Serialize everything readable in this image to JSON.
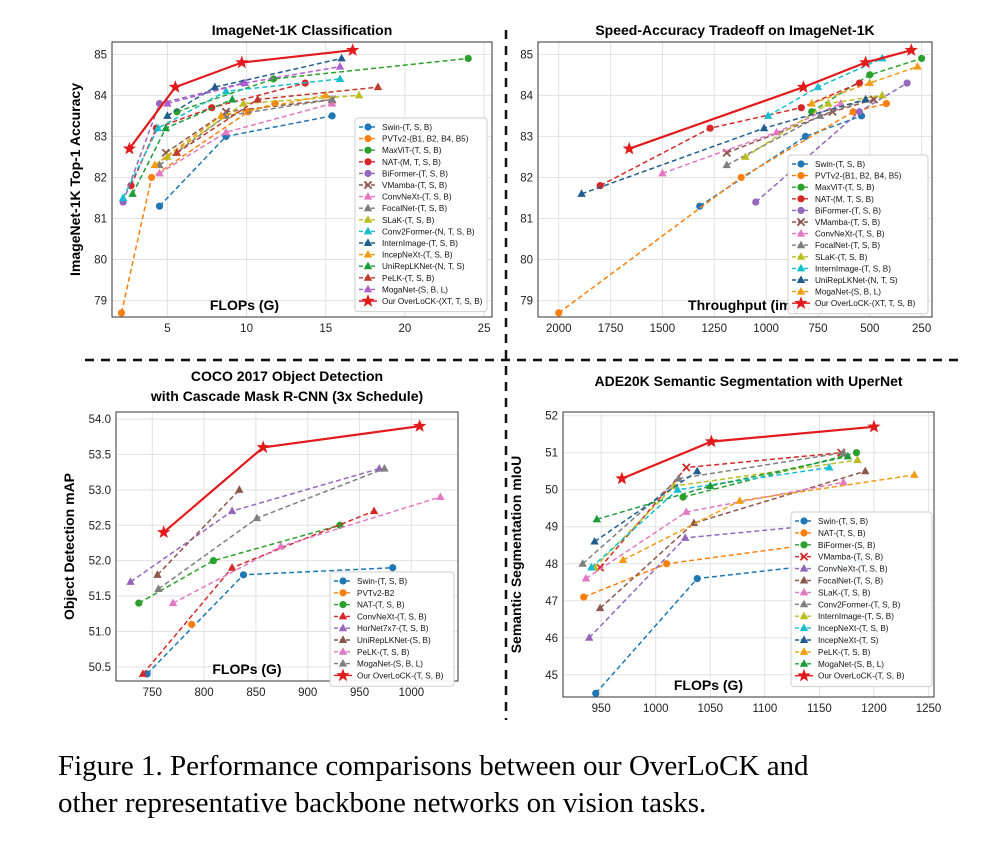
{
  "caption": {
    "line1": "Figure 1.  Performance comparisons between our OverLoCK and",
    "line2": "other representative backbone networks on vision tasks."
  },
  "colors": {
    "blue": "#1f77b4",
    "orange": "#ff7f0e",
    "green": "#2ca02c",
    "red": "#d62728",
    "purple": "#9467bd",
    "brown": "#8c564b",
    "pink": "#e377c2",
    "gray": "#7f7f7f",
    "olive": "#bcbd22",
    "cyan": "#17becf",
    "navy": "#1f5d8f",
    "darkorange": "#f39c12",
    "darkgreen": "#1a9c3a",
    "crimson": "#c0392b",
    "violet": "#b05fcf",
    "star": "#e31a1c"
  },
  "chart_data": [
    {
      "type": "line",
      "title": "ImageNet-1K Classification",
      "xlabel": "FLOPs (G)",
      "ylabel": "ImageNet-1K Top-1 Accuracy",
      "xlim": [
        1.5,
        25.5
      ],
      "ylim": [
        78.6,
        85.3
      ],
      "xticks": [
        5,
        10,
        15,
        20,
        25
      ],
      "yticks": [
        79,
        80,
        81,
        82,
        83,
        84,
        85
      ],
      "grid": true,
      "legend_position": "lower-right",
      "series": [
        {
          "name": "Swin-(T, S, B)",
          "color": "blue",
          "marker": "o",
          "x": [
            4.5,
            8.7,
            15.4
          ],
          "y": [
            81.3,
            83.0,
            83.5
          ]
        },
        {
          "name": "PVTv2-(B1, B2, B4, B5)",
          "color": "orange",
          "marker": "o",
          "x": [
            2.1,
            4.0,
            10.1,
            11.8
          ],
          "y": [
            78.7,
            82.0,
            83.6,
            83.8
          ]
        },
        {
          "name": "MaxViT-(T, S, B)",
          "color": "green",
          "marker": "o",
          "x": [
            5.6,
            11.7,
            24.0
          ],
          "y": [
            83.6,
            84.4,
            84.9
          ]
        },
        {
          "name": "NAT-(M, T, S, B)",
          "color": "red",
          "marker": "o",
          "x": [
            2.7,
            4.3,
            7.8,
            13.7
          ],
          "y": [
            81.8,
            83.2,
            83.7,
            84.3
          ]
        },
        {
          "name": "BiFormer-(T, S, B)",
          "color": "purple",
          "marker": "o",
          "x": [
            2.2,
            4.5,
            9.8
          ],
          "y": [
            81.4,
            83.8,
            84.3
          ]
        },
        {
          "name": "VMamba-(T, S, B)",
          "color": "brown",
          "marker": "x",
          "x": [
            4.9,
            8.7,
            15.4
          ],
          "y": [
            82.6,
            83.6,
            83.9
          ]
        },
        {
          "name": "ConvNeXt-(T, S, B)",
          "color": "pink",
          "marker": "^",
          "x": [
            4.5,
            8.7,
            15.4
          ],
          "y": [
            82.1,
            83.1,
            83.8
          ]
        },
        {
          "name": "FocalNet-(T, S, B)",
          "color": "gray",
          "marker": "^",
          "x": [
            4.5,
            8.7,
            15.4
          ],
          "y": [
            82.3,
            83.5,
            83.9
          ]
        },
        {
          "name": "SLaK-(T, S, B)",
          "color": "olive",
          "marker": "^",
          "x": [
            5.0,
            9.8,
            17.1
          ],
          "y": [
            82.5,
            83.8,
            84.0
          ]
        },
        {
          "name": "Conv2Former-(N, T, S, B)",
          "color": "cyan",
          "marker": "^",
          "x": [
            2.2,
            4.4,
            8.7,
            15.9
          ],
          "y": [
            81.5,
            83.2,
            84.1,
            84.4
          ]
        },
        {
          "name": "InternImage-(T, S, B)",
          "color": "navy",
          "marker": "^",
          "x": [
            5.0,
            8.0,
            16.0
          ],
          "y": [
            83.5,
            84.2,
            84.9
          ]
        },
        {
          "name": "IncepNeXt-(T, S, B)",
          "color": "darkorange",
          "marker": "^",
          "x": [
            4.2,
            8.4,
            15.0
          ],
          "y": [
            82.3,
            83.5,
            84.0
          ]
        },
        {
          "name": "UniRepLKNet-(N, T, S)",
          "color": "darkgreen",
          "marker": "^",
          "x": [
            2.8,
            4.9,
            9.1
          ],
          "y": [
            81.6,
            83.2,
            83.9
          ]
        },
        {
          "name": "PeLK-(T, S, B)",
          "color": "crimson",
          "marker": "^",
          "x": [
            5.6,
            10.7,
            18.3
          ],
          "y": [
            82.6,
            83.9,
            84.2
          ]
        },
        {
          "name": "MogaNet-(S, B, L)",
          "color": "violet",
          "marker": "^",
          "x": [
            5.0,
            9.9,
            15.9
          ],
          "y": [
            83.8,
            84.3,
            84.7
          ]
        },
        {
          "name": "Our OverLoCK-(XT, T, S, B)",
          "color": "star",
          "marker": "*",
          "x": [
            2.6,
            5.5,
            9.7,
            16.7
          ],
          "y": [
            82.7,
            84.2,
            84.8,
            85.1
          ]
        }
      ]
    },
    {
      "type": "line",
      "title": "Speed-Accuracy Tradeoff on ImageNet-1K",
      "xlabel": "Throughput (imgs/s)",
      "xlim": [
        2100,
        200
      ],
      "ylim": [
        78.6,
        85.3
      ],
      "xticks": [
        2000,
        1750,
        1500,
        1250,
        1000,
        750,
        500,
        250
      ],
      "yticks": [
        79,
        80,
        81,
        82,
        83,
        84,
        85
      ],
      "grid": true,
      "legend_position": "lower-right",
      "series": [
        {
          "name": "Swin-(T, S, B)",
          "color": "blue",
          "marker": "o",
          "x": [
            1320,
            810,
            540
          ],
          "y": [
            81.3,
            83.0,
            83.5
          ]
        },
        {
          "name": "PVTv2-(B1, B2, B4, B5)",
          "color": "orange",
          "marker": "o",
          "x": [
            2000,
            1120,
            580,
            420
          ],
          "y": [
            78.7,
            82.0,
            83.6,
            83.8
          ]
        },
        {
          "name": "MaxViT-(T, S, B)",
          "color": "green",
          "marker": "o",
          "x": [
            780,
            500,
            250
          ],
          "y": [
            83.6,
            84.5,
            84.9
          ]
        },
        {
          "name": "NAT-(M, T, S, B)",
          "color": "red",
          "marker": "o",
          "x": [
            1800,
            1270,
            830,
            550
          ],
          "y": [
            81.8,
            83.2,
            83.7,
            84.3
          ]
        },
        {
          "name": "BiFormer-(T, S, B)",
          "color": "purple",
          "marker": "o",
          "x": [
            1050,
            550,
            320
          ],
          "y": [
            81.4,
            83.6,
            84.3
          ]
        },
        {
          "name": "VMamba-(T, S, B)",
          "color": "brown",
          "marker": "x",
          "x": [
            1190,
            680,
            480
          ],
          "y": [
            82.6,
            83.6,
            83.9
          ]
        },
        {
          "name": "ConvNeXt-(T, S, B)",
          "color": "pink",
          "marker": "^",
          "x": [
            1500,
            950,
            640
          ],
          "y": [
            82.1,
            83.1,
            83.8
          ]
        },
        {
          "name": "FocalNet-(T, S, B)",
          "color": "gray",
          "marker": "^",
          "x": [
            1190,
            740,
            520
          ],
          "y": [
            82.3,
            83.5,
            83.9
          ]
        },
        {
          "name": "SLaK-(T, S, B)",
          "color": "olive",
          "marker": "^",
          "x": [
            1100,
            700,
            440
          ],
          "y": [
            82.5,
            83.8,
            84.0
          ]
        },
        {
          "name": "InternImage-(T, S, B)",
          "color": "cyan",
          "marker": "^",
          "x": [
            990,
            750,
            440
          ],
          "y": [
            83.5,
            84.2,
            84.9
          ]
        },
        {
          "name": "UniRepLKNet-(N, T, S)",
          "color": "navy",
          "marker": "^",
          "x": [
            1890,
            1010,
            520
          ],
          "y": [
            81.6,
            83.2,
            83.9
          ]
        },
        {
          "name": "MogaNet-(S, B, L)",
          "color": "darkorange",
          "marker": "^",
          "x": [
            780,
            500,
            270
          ],
          "y": [
            83.8,
            84.3,
            84.7
          ]
        },
        {
          "name": "Our OverLoCK-(XT, T, S, B)",
          "color": "star",
          "marker": "*",
          "x": [
            1660,
            820,
            520,
            300
          ],
          "y": [
            82.7,
            84.2,
            84.8,
            85.1
          ]
        }
      ]
    },
    {
      "type": "line",
      "title": "COCO 2017 Object Detection",
      "subtitle": "with Cascade Mask R-CNN (3x Schedule)",
      "xlabel": "FLOPs (G)",
      "ylabel": "Object Detection mAP",
      "xlim": [
        715,
        1045
      ],
      "ylim": [
        50.3,
        54.1
      ],
      "xticks": [
        750,
        800,
        850,
        900,
        950,
        1000
      ],
      "yticks": [
        50.5,
        51.0,
        51.5,
        52.0,
        52.5,
        53.0,
        53.5,
        54.0
      ],
      "grid": true,
      "legend_position": "lower-right",
      "series": [
        {
          "name": "Swin-(T, S, B)",
          "color": "blue",
          "marker": "o",
          "x": [
            745,
            838,
            982
          ],
          "y": [
            50.4,
            51.8,
            51.9
          ]
        },
        {
          "name": "PVTv2-B2",
          "color": "orange",
          "marker": "o",
          "x": [
            788
          ],
          "y": [
            51.1
          ]
        },
        {
          "name": "NAT-(T, S, B)",
          "color": "green",
          "marker": "o",
          "x": [
            737,
            809,
            931
          ],
          "y": [
            51.4,
            52.0,
            52.5
          ]
        },
        {
          "name": "ConvNeXt-(T, S, B)",
          "color": "red",
          "marker": "^",
          "x": [
            741,
            827,
            964
          ],
          "y": [
            50.4,
            51.9,
            52.7
          ]
        },
        {
          "name": "HorNet7x7-(T, S, B)",
          "color": "purple",
          "marker": "^",
          "x": [
            729,
            827,
            969
          ],
          "y": [
            51.7,
            52.7,
            53.3
          ]
        },
        {
          "name": "UniRepLKNet-(S, B)",
          "color": "brown",
          "marker": "^",
          "x": [
            755,
            834
          ],
          "y": [
            51.8,
            53.0
          ]
        },
        {
          "name": "PeLK-(T, S, B)",
          "color": "pink",
          "marker": "^",
          "x": [
            770,
            874,
            1028
          ],
          "y": [
            51.4,
            52.2,
            52.9
          ]
        },
        {
          "name": "MogaNet-(S, B, L)",
          "color": "gray",
          "marker": "^",
          "x": [
            756,
            851,
            974
          ],
          "y": [
            51.6,
            52.6,
            53.3
          ]
        },
        {
          "name": "Our OverLoCK-(T, S, B)",
          "color": "star",
          "marker": "*",
          "x": [
            761,
            857,
            1008
          ],
          "y": [
            52.4,
            53.6,
            53.9
          ]
        }
      ]
    },
    {
      "type": "line",
      "title": "ADE20K Semantic Segmentation with UperNet",
      "xlabel": "FLOPs (G)",
      "ylabel": "Semantic Segmentation mIoU",
      "xlim": [
        915,
        1255
      ],
      "ylim": [
        44.4,
        52.1
      ],
      "xticks": [
        950,
        1000,
        1050,
        1100,
        1150,
        1200,
        1250
      ],
      "yticks": [
        45,
        46,
        47,
        48,
        49,
        50,
        51,
        52
      ],
      "grid": true,
      "legend_position": "lower-right",
      "series": [
        {
          "name": "Swin-(T, S, B)",
          "color": "blue",
          "marker": "o",
          "x": [
            945,
            1038,
            1188
          ],
          "y": [
            44.5,
            47.6,
            48.1
          ]
        },
        {
          "name": "NAT-(T, S, B)",
          "color": "orange",
          "marker": "o",
          "x": [
            934,
            1010,
            1137
          ],
          "y": [
            47.1,
            48.0,
            48.5
          ]
        },
        {
          "name": "BiFormer-(S, B)",
          "color": "green",
          "marker": "o",
          "x": [
            1025,
            1184
          ],
          "y": [
            49.8,
            51.0
          ]
        },
        {
          "name": "VMamba-(T, S, B)",
          "color": "red",
          "marker": "x",
          "x": [
            949,
            1028,
            1170
          ],
          "y": [
            47.9,
            50.6,
            51.0
          ]
        },
        {
          "name": "ConvNeXt-(T, S, B)",
          "color": "purple",
          "marker": "^",
          "x": [
            939,
            1027,
            1170
          ],
          "y": [
            46.0,
            48.7,
            49.1
          ]
        },
        {
          "name": "FocalNet-(T, S, B)",
          "color": "brown",
          "marker": "^",
          "x": [
            949,
            1035,
            1192
          ],
          "y": [
            46.8,
            49.1,
            50.5
          ]
        },
        {
          "name": "SLaK-(T, S, B)",
          "color": "pink",
          "marker": "^",
          "x": [
            936,
            1028,
            1172
          ],
          "y": [
            47.6,
            49.4,
            50.2
          ]
        },
        {
          "name": "Conv2Former-(T, S, B)",
          "color": "gray",
          "marker": "^",
          "x": [
            933,
            1021,
            1172
          ],
          "y": [
            48.0,
            50.3,
            51.0
          ]
        },
        {
          "name": "InternImage-(T, S, B)",
          "color": "olive",
          "marker": "^",
          "x": [
            944,
            1017,
            1185
          ],
          "y": [
            47.9,
            50.1,
            50.8
          ]
        },
        {
          "name": "IncepNeXt-(T, S, B)",
          "color": "cyan",
          "marker": "^",
          "x": [
            941,
            1020,
            1159
          ],
          "y": [
            47.9,
            50.0,
            50.6
          ]
        },
        {
          "name": "IncepNeXt-(T, S)",
          "color": "navy",
          "marker": "^",
          "x": [
            944,
            1038
          ],
          "y": [
            48.6,
            50.5
          ]
        },
        {
          "name": "PeLK-(T, S, B)",
          "color": "darkorange",
          "marker": "^",
          "x": [
            970,
            1077,
            1237
          ],
          "y": [
            48.1,
            49.7,
            50.4
          ]
        },
        {
          "name": "MogaNet-(S, B, L)",
          "color": "darkgreen",
          "marker": "^",
          "x": [
            946,
            1050,
            1176
          ],
          "y": [
            49.2,
            50.1,
            50.9
          ]
        },
        {
          "name": "Our OverLoCK-(T, S, B)",
          "color": "star",
          "marker": "*",
          "x": [
            969,
            1051,
            1200
          ],
          "y": [
            50.3,
            51.3,
            51.7
          ]
        }
      ]
    }
  ]
}
